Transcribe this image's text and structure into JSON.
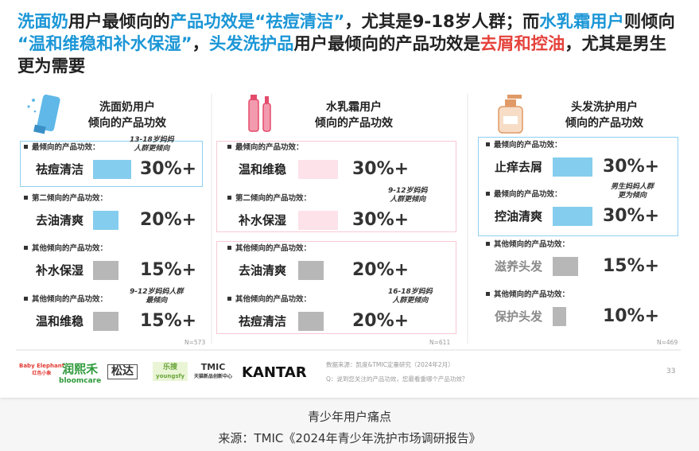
{
  "header": {
    "segments": [
      {
        "text": "洗面奶",
        "color": "#1b96d6"
      },
      {
        "text": "用户最倾向的",
        "color": "#222222"
      },
      {
        "text": "产品功效是“祛痘清洁”",
        "color": "#1b96d6"
      },
      {
        "text": "，尤其是9-18岁人群；而",
        "color": "#222222"
      },
      {
        "text": "水乳霜用户",
        "color": "#1b96d6"
      },
      {
        "text": "则倾向",
        "color": "#222222"
      },
      {
        "text": "“温和维稳和补水保湿”",
        "color": "#1b96d6"
      },
      {
        "text": "，",
        "color": "#222222"
      },
      {
        "text": "头发洗护品",
        "color": "#1b96d6"
      },
      {
        "text": "用户最倾向的产品功效是",
        "color": "#222222"
      },
      {
        "text": "去屑和控油",
        "color": "#e5423b"
      },
      {
        "text": "，尤其是男生更为需要",
        "color": "#222222"
      }
    ]
  },
  "columns": [
    {
      "title": [
        "洗面奶用户",
        "倾向的产品功效"
      ],
      "sample": "N=573",
      "items": [
        {
          "label": "最倾向的产品功效：",
          "name": "祛痘清洁",
          "value": "30%+",
          "color": "#85cdee",
          "note": [
            "13-18岁妈妈",
            "人群更倾向"
          ]
        },
        {
          "label": "第二倾向的产品功效：",
          "name": "去油清爽",
          "value": "20%+",
          "color": "#85cdee"
        },
        {
          "label": "其他倾向的产品功效：",
          "name": "补水保湿",
          "value": "15%+",
          "color": "#b7b7b7"
        },
        {
          "label": "其他倾向的产品功效：",
          "name": "温和维稳",
          "value": "15%+",
          "color": "#b7b7b7",
          "note": [
            "9-12岁妈妈人群",
            "最倾向"
          ]
        }
      ]
    },
    {
      "title": [
        "水乳霜用户",
        "倾向的产品功效"
      ],
      "sample": "N=611",
      "items": [
        {
          "label": "最倾向的产品功效：",
          "name": "温和维稳",
          "value": "30%+",
          "color": "#fde2ea"
        },
        {
          "label": "第二倾向的产品功效：",
          "name": "补水保湿",
          "value": "30%+",
          "color": "#fde2ea",
          "note": [
            "9-12岁妈妈",
            "人群更倾向"
          ]
        },
        {
          "label": "其他倾向的产品功效：",
          "name": "去油清爽",
          "value": "20%+",
          "color": "#b7b7b7"
        },
        {
          "label": "其他倾向的产品功效：",
          "name": "祛痘清洁",
          "value": "20%+",
          "color": "#b7b7b7",
          "note": [
            "16-18岁妈妈",
            "人群更倾向"
          ]
        }
      ]
    },
    {
      "title": [
        "头发洗护用户",
        "倾向的产品功效"
      ],
      "sample": "N=469",
      "items": [
        {
          "label": "最倾向的产品功效：",
          "name": "止痒去屑",
          "value": "30%+",
          "color": "#85cdee"
        },
        {
          "label": "最倾向的产品功效：",
          "name": "控油清爽",
          "value": "30%+",
          "color": "#85cdee",
          "note": [
            "男生妈妈人群",
            "更为倾向"
          ]
        },
        {
          "label": "其他倾向的产品功效：",
          "name": "滋养头发",
          "value": "15%+",
          "color": "#b7b7b7",
          "muted": true
        },
        {
          "label": "其他倾向的产品功效：",
          "name": "保护头发",
          "value": "10%+",
          "color": "#b7b7b7",
          "muted": true
        }
      ]
    }
  ],
  "footer": {
    "logos": [
      [
        "Baby Elephant",
        "红色小象"
      ],
      [
        "润熙禾",
        "bloomcare"
      ],
      [
        "松达"
      ],
      [
        "乐搜",
        "youngsfy"
      ],
      [
        "TMIC",
        "天猫新品创新中心"
      ],
      [
        "KANTAR"
      ]
    ],
    "source": "数据来源：凯度&TMIC定量研究（2024年2月）",
    "question": "Q：说到您关注的产品功效，您最看重哪个产品功效？",
    "page": "33"
  },
  "caption": {
    "title": "青少年用户痛点",
    "source": "来源：TMIC《2024年青少年洗护市场调研报告》"
  }
}
